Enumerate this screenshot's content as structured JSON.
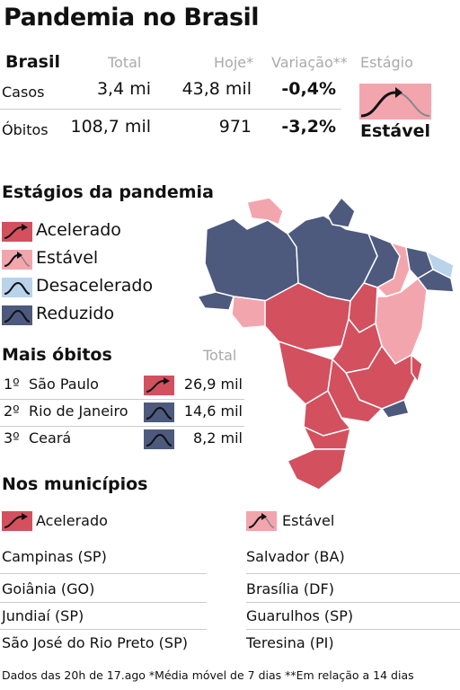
{
  "title": "Pandemia no Brasil",
  "summary": {
    "region": "Brasil",
    "headers": {
      "total": "Total",
      "today": "Hoje*",
      "variation": "Variação**",
      "stage": "Estágio"
    },
    "rows": [
      {
        "label": "Casos",
        "total": "3,4 mi",
        "today": "43,8 mil",
        "variation": "-0,4%"
      },
      {
        "label": "Óbitos",
        "total": "108,7 mil",
        "today": "971",
        "variation": "-3,2%"
      }
    ],
    "stage_label": "Estável"
  },
  "stages": {
    "heading": "Estágios da pandemia",
    "items": [
      {
        "label": "Acelerado",
        "color": "#d3505f"
      },
      {
        "label": "Estável",
        "color": "#f3a5ae"
      },
      {
        "label": "Desacelerado",
        "color": "#b8d3ea"
      },
      {
        "label": "Reduzido",
        "color": "#4d5a7d"
      }
    ]
  },
  "deaths": {
    "heading": "Mais óbitos",
    "total_header": "Total",
    "rows": [
      {
        "rank": "1º",
        "state": "São Paulo",
        "total": "26,9 mil",
        "stage": "Acelerado",
        "color": "#d3505f"
      },
      {
        "rank": "2º",
        "state": "Rio de Janeiro",
        "total": "14,6 mil",
        "stage": "Reduzido",
        "color": "#4d5a7d"
      },
      {
        "rank": "3º",
        "state": "Ceará",
        "total": "8,2 mil",
        "stage": "Reduzido",
        "color": "#4d5a7d"
      }
    ]
  },
  "cities": {
    "heading": "Nos municípios",
    "accelerated_label": "Acelerado",
    "stable_label": "Estável",
    "accelerated": [
      "Campinas (SP)",
      "Goiânia (GO)",
      "Jundiaí (SP)",
      "São José do Rio Preto (SP)"
    ],
    "stable": [
      "Salvador (BA)",
      "Brasília (DF)",
      "Guarulhos (SP)",
      "Teresina (PI)"
    ]
  },
  "footnote": "Dados das 20h de 17.ago *Média móvel de 7 dias **Em relação a 14 dias",
  "map_states": [
    {
      "state": "AM",
      "stage": "Reduzido",
      "color": "#4d5a7d"
    },
    {
      "state": "RR",
      "stage": "Estável",
      "color": "#f3a5ae"
    },
    {
      "state": "PA",
      "stage": "Reduzido",
      "color": "#4d5a7d"
    },
    {
      "state": "AP",
      "stage": "Reduzido",
      "color": "#4d5a7d"
    },
    {
      "state": "AC",
      "stage": "Reduzido",
      "color": "#4d5a7d"
    },
    {
      "state": "RO",
      "stage": "Estável",
      "color": "#f3a5ae"
    },
    {
      "state": "MA",
      "stage": "Reduzido",
      "color": "#4d5a7d"
    },
    {
      "state": "PI",
      "stage": "Estável",
      "color": "#f3a5ae"
    },
    {
      "state": "CE",
      "stage": "Reduzido",
      "color": "#4d5a7d"
    },
    {
      "state": "RN",
      "stage": "Desacelerado",
      "color": "#b8d3ea"
    },
    {
      "state": "PB",
      "stage": "Reduzido",
      "color": "#4d5a7d"
    },
    {
      "state": "BA",
      "stage": "Estável",
      "color": "#f3a5ae"
    },
    {
      "state": "TO",
      "stage": "Acelerado",
      "color": "#d3505f"
    },
    {
      "state": "MT",
      "stage": "Acelerado",
      "color": "#d3505f"
    },
    {
      "state": "GO",
      "stage": "Acelerado",
      "color": "#d3505f"
    },
    {
      "state": "MS",
      "stage": "Acelerado",
      "color": "#d3505f"
    },
    {
      "state": "MG",
      "stage": "Acelerado",
      "color": "#d3505f"
    },
    {
      "state": "SP",
      "stage": "Acelerado",
      "color": "#d3505f"
    },
    {
      "state": "RJ",
      "stage": "Reduzido",
      "color": "#4d5a7d"
    },
    {
      "state": "PR",
      "stage": "Acelerado",
      "color": "#d3505f"
    },
    {
      "state": "SC",
      "stage": "Acelerado",
      "color": "#d3505f"
    },
    {
      "state": "RS",
      "stage": "Acelerado",
      "color": "#d3505f"
    }
  ]
}
